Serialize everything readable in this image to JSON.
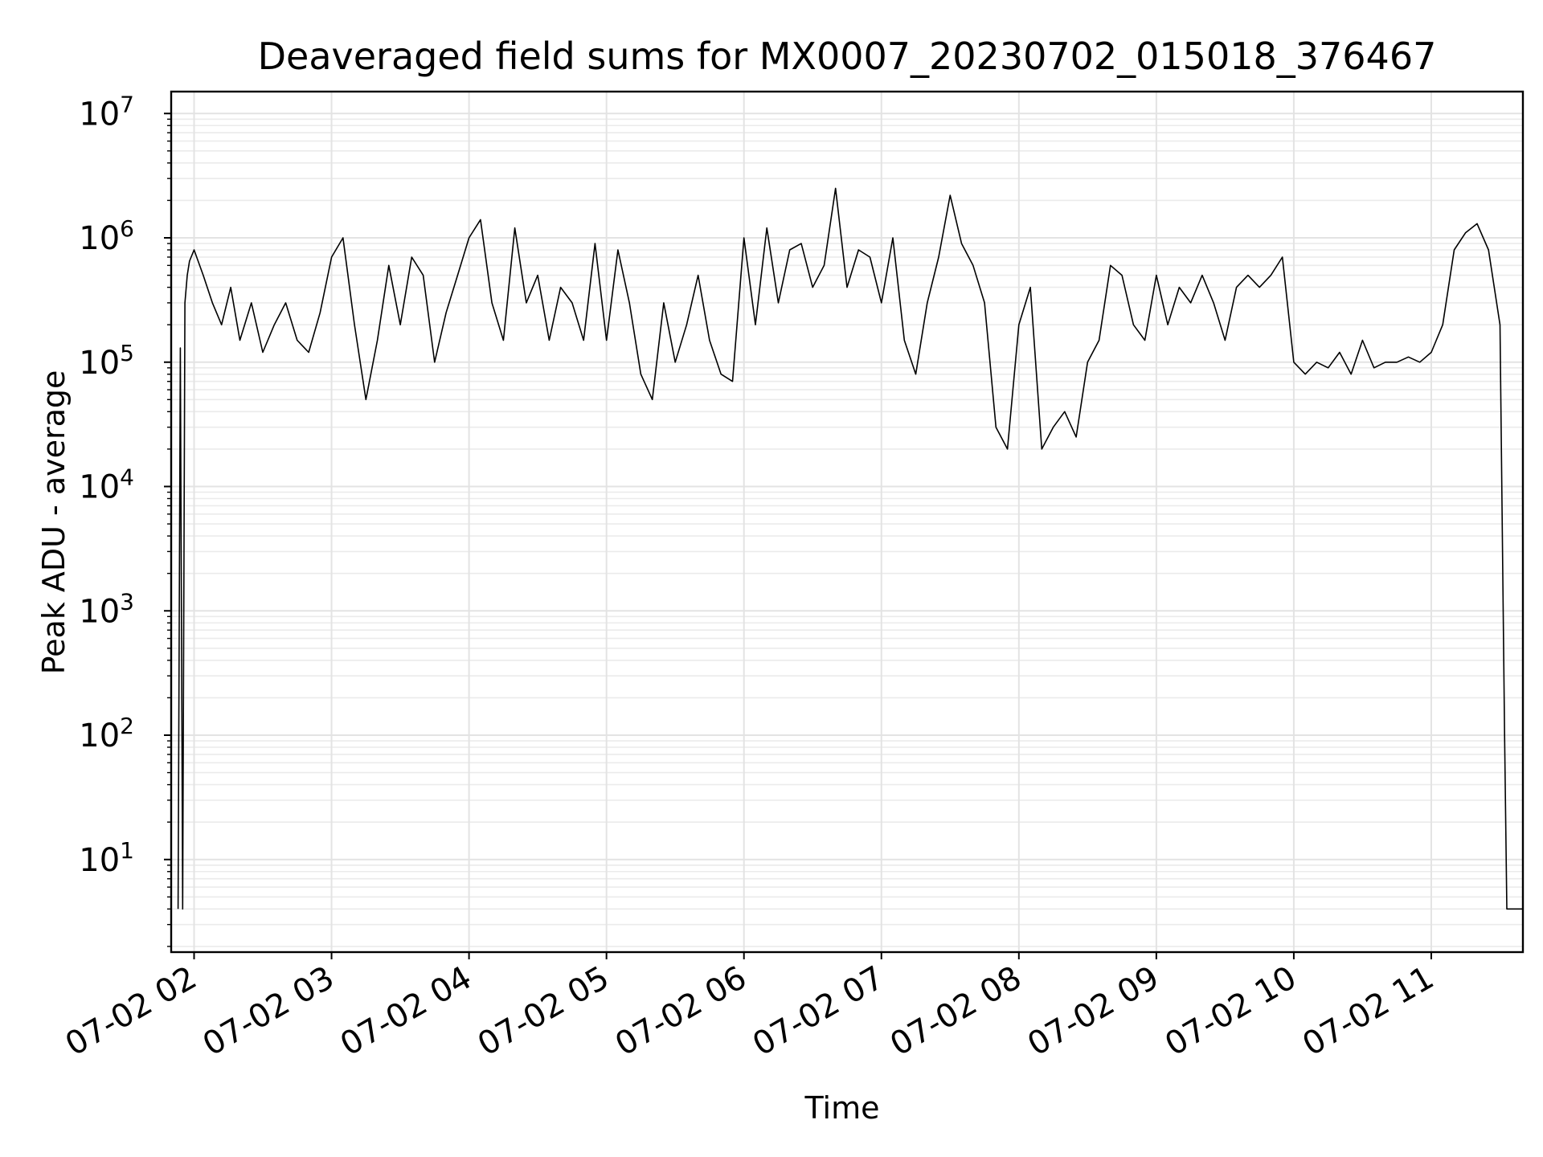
{
  "chart_data": {
    "type": "line",
    "title": "Deaveraged field sums for MX0007_20230702_015018_376467",
    "xlabel": "Time",
    "ylabel": "Peak ADU - average",
    "y_scale": "log",
    "ylim": [
      1.8,
      15000000
    ],
    "xlim": [
      "2023-07-02 01:50",
      "2023-07-02 11:40"
    ],
    "grid": "on (major and minor, light gray)",
    "legend": "none",
    "line_color": "#000000",
    "x_ticks": [
      "07-02 02",
      "07-02 03",
      "07-02 04",
      "07-02 05",
      "07-02 06",
      "07-02 07",
      "07-02 08",
      "07-02 09",
      "07-02 10",
      "07-02 11"
    ],
    "y_ticks": [
      {
        "base": "10",
        "exp": "1"
      },
      {
        "base": "10",
        "exp": "2"
      },
      {
        "base": "10",
        "exp": "3"
      },
      {
        "base": "10",
        "exp": "4"
      },
      {
        "base": "10",
        "exp": "5"
      },
      {
        "base": "10",
        "exp": "6"
      },
      {
        "base": "10",
        "exp": "7"
      }
    ],
    "series": [
      {
        "x": [
          "2023-07-02 01:53",
          "2023-07-02 01:54",
          "2023-07-02 01:55",
          "2023-07-02 01:56",
          "2023-07-02 01:57",
          "2023-07-02 01:58",
          "2023-07-02 02:00",
          "2023-07-02 02:04",
          "2023-07-02 02:08",
          "2023-07-02 02:12",
          "2023-07-02 02:16",
          "2023-07-02 02:20",
          "2023-07-02 02:25",
          "2023-07-02 02:30",
          "2023-07-02 02:35",
          "2023-07-02 02:40",
          "2023-07-02 02:45",
          "2023-07-02 02:50",
          "2023-07-02 02:55",
          "2023-07-02 03:00",
          "2023-07-02 03:05",
          "2023-07-02 03:10",
          "2023-07-02 03:15",
          "2023-07-02 03:20",
          "2023-07-02 03:25",
          "2023-07-02 03:30",
          "2023-07-02 03:35",
          "2023-07-02 03:40",
          "2023-07-02 03:45",
          "2023-07-02 03:50",
          "2023-07-02 03:55",
          "2023-07-02 04:00",
          "2023-07-02 04:05",
          "2023-07-02 04:10",
          "2023-07-02 04:15",
          "2023-07-02 04:20",
          "2023-07-02 04:25",
          "2023-07-02 04:30",
          "2023-07-02 04:35",
          "2023-07-02 04:40",
          "2023-07-02 04:45",
          "2023-07-02 04:50",
          "2023-07-02 04:55",
          "2023-07-02 05:00",
          "2023-07-02 05:05",
          "2023-07-02 05:10",
          "2023-07-02 05:15",
          "2023-07-02 05:20",
          "2023-07-02 05:25",
          "2023-07-02 05:30",
          "2023-07-02 05:35",
          "2023-07-02 05:40",
          "2023-07-02 05:45",
          "2023-07-02 05:50",
          "2023-07-02 05:55",
          "2023-07-02 06:00",
          "2023-07-02 06:05",
          "2023-07-02 06:10",
          "2023-07-02 06:15",
          "2023-07-02 06:20",
          "2023-07-02 06:25",
          "2023-07-02 06:30",
          "2023-07-02 06:35",
          "2023-07-02 06:40",
          "2023-07-02 06:45",
          "2023-07-02 06:50",
          "2023-07-02 06:55",
          "2023-07-02 07:00",
          "2023-07-02 07:05",
          "2023-07-02 07:10",
          "2023-07-02 07:15",
          "2023-07-02 07:20",
          "2023-07-02 07:25",
          "2023-07-02 07:30",
          "2023-07-02 07:35",
          "2023-07-02 07:40",
          "2023-07-02 07:45",
          "2023-07-02 07:50",
          "2023-07-02 07:55",
          "2023-07-02 08:00",
          "2023-07-02 08:05",
          "2023-07-02 08:10",
          "2023-07-02 08:15",
          "2023-07-02 08:20",
          "2023-07-02 08:25",
          "2023-07-02 08:30",
          "2023-07-02 08:35",
          "2023-07-02 08:40",
          "2023-07-02 08:45",
          "2023-07-02 08:50",
          "2023-07-02 08:55",
          "2023-07-02 09:00",
          "2023-07-02 09:05",
          "2023-07-02 09:10",
          "2023-07-02 09:15",
          "2023-07-02 09:20",
          "2023-07-02 09:25",
          "2023-07-02 09:30",
          "2023-07-02 09:35",
          "2023-07-02 09:40",
          "2023-07-02 09:45",
          "2023-07-02 09:50",
          "2023-07-02 09:55",
          "2023-07-02 10:00",
          "2023-07-02 10:05",
          "2023-07-02 10:10",
          "2023-07-02 10:15",
          "2023-07-02 10:20",
          "2023-07-02 10:25",
          "2023-07-02 10:30",
          "2023-07-02 10:35",
          "2023-07-02 10:40",
          "2023-07-02 10:45",
          "2023-07-02 10:50",
          "2023-07-02 10:55",
          "2023-07-02 11:00",
          "2023-07-02 11:05",
          "2023-07-02 11:10",
          "2023-07-02 11:15",
          "2023-07-02 11:20",
          "2023-07-02 11:25",
          "2023-07-02 11:30",
          "2023-07-02 11:32",
          "2023-07-02 11:33",
          "2023-07-02 11:35",
          "2023-07-02 11:40"
        ],
        "y": [
          4,
          130000,
          4,
          300000,
          500000,
          650000,
          800000,
          500000,
          300000,
          200000,
          400000,
          150000,
          300000,
          120000,
          200000,
          300000,
          150000,
          120000,
          250000,
          700000,
          1000000,
          200000,
          50000,
          150000,
          600000,
          200000,
          700000,
          500000,
          100000,
          250000,
          500000,
          1000000,
          1400000,
          300000,
          150000,
          1200000,
          300000,
          500000,
          150000,
          400000,
          300000,
          150000,
          900000,
          150000,
          800000,
          300000,
          80000,
          50000,
          300000,
          100000,
          200000,
          500000,
          150000,
          80000,
          70000,
          1000000,
          200000,
          1200000,
          300000,
          800000,
          900000,
          400000,
          600000,
          2500000,
          400000,
          800000,
          700000,
          300000,
          1000000,
          150000,
          80000,
          300000,
          700000,
          2200000,
          900000,
          600000,
          300000,
          30000,
          20000,
          200000,
          400000,
          20000,
          30000,
          40000,
          25000,
          100000,
          150000,
          600000,
          500000,
          200000,
          150000,
          500000,
          200000,
          400000,
          300000,
          500000,
          300000,
          150000,
          400000,
          500000,
          400000,
          500000,
          700000,
          100000,
          80000,
          100000,
          90000,
          120000,
          80000,
          150000,
          90000,
          100000,
          100000,
          110000,
          100000,
          120000,
          200000,
          800000,
          1100000,
          1300000,
          800000,
          200000,
          100,
          4,
          4,
          4
        ]
      }
    ]
  }
}
